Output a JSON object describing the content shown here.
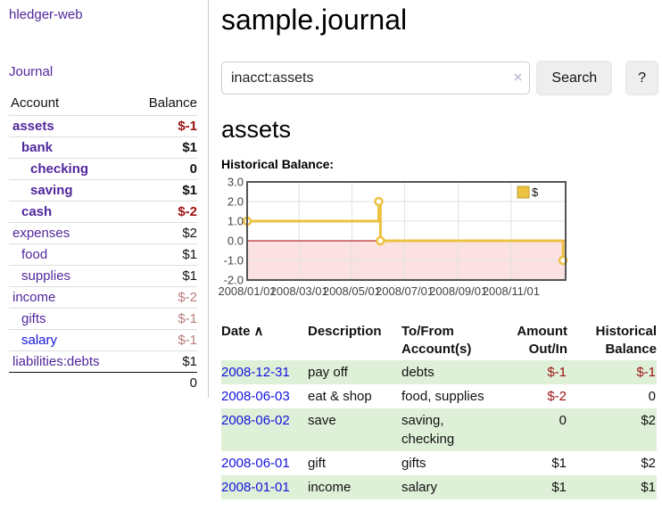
{
  "colors": {
    "link_purple": "#50279c",
    "link_blue": "#1414dd",
    "negative_strong": "#9c1111",
    "negative_muted": "#b97c7c",
    "row_stripe_green": "#dff0d8",
    "chart_line_gold": "#edc240",
    "chart_below_zero_pink": "#fbe1e1",
    "chart_zero_line_red": "#aa0000"
  },
  "sidebar": {
    "app_title": "hledger-web",
    "journal_link": "Journal",
    "accounts_table": {
      "headers": {
        "account": "Account",
        "balance": "Balance"
      },
      "rows": [
        {
          "name": "assets",
          "depth": 0,
          "bold": true,
          "name_style": "purple",
          "balance": "$-1",
          "balance_style": "neg-strong"
        },
        {
          "name": "bank",
          "depth": 1,
          "bold": true,
          "name_style": "purple",
          "balance": "$1",
          "balance_style": "normal"
        },
        {
          "name": "checking",
          "depth": 2,
          "bold": true,
          "name_style": "purple",
          "balance": "0",
          "balance_style": "normal"
        },
        {
          "name": "saving",
          "depth": 2,
          "bold": true,
          "name_style": "purple",
          "balance": "$1",
          "balance_style": "normal"
        },
        {
          "name": "cash",
          "depth": 1,
          "bold": true,
          "name_style": "purple",
          "balance": "$-2",
          "balance_style": "neg-strong"
        },
        {
          "name": "expenses",
          "depth": 0,
          "bold": false,
          "name_style": "purple",
          "balance": "$2",
          "balance_style": "normal"
        },
        {
          "name": "food",
          "depth": 1,
          "bold": false,
          "name_style": "purple",
          "balance": "$1",
          "balance_style": "normal"
        },
        {
          "name": "supplies",
          "depth": 1,
          "bold": false,
          "name_style": "purple",
          "balance": "$1",
          "balance_style": "normal"
        },
        {
          "name": "income",
          "depth": 0,
          "bold": false,
          "name_style": "purple",
          "balance": "$-2",
          "balance_style": "neg-muted"
        },
        {
          "name": "gifts",
          "depth": 1,
          "bold": false,
          "name_style": "purple",
          "balance": "$-1",
          "balance_style": "neg-muted"
        },
        {
          "name": "salary",
          "depth": 1,
          "bold": false,
          "name_style": "blue",
          "balance": "$-1",
          "balance_style": "neg-muted"
        },
        {
          "name": "liabilities:debts",
          "depth": 0,
          "bold": false,
          "name_style": "purple",
          "balance": "$1",
          "balance_style": "normal"
        }
      ],
      "total": "0"
    }
  },
  "main": {
    "title": "sample.journal",
    "search": {
      "value": "inacct:assets",
      "clear_icon": "×",
      "search_button": "Search",
      "help_button": "?"
    },
    "account_heading": "assets",
    "chart_label": "Historical Balance:",
    "table": {
      "headers": {
        "date": "Date",
        "sort_icon": "∧",
        "description": "Description",
        "tofrom_line1": "To/From",
        "tofrom_line2": "Account(s)",
        "amount_line1": "Amount",
        "amount_line2": "Out/In",
        "balance_line1": "Historical",
        "balance_line2": "Balance"
      },
      "rows": [
        {
          "date": "2008-12-31",
          "description": "pay off",
          "accounts": "debts",
          "amount": "$-1",
          "amount_style": "neg-strong",
          "balance": "$-1",
          "balance_style": "neg-strong",
          "striped": true
        },
        {
          "date": "2008-06-03",
          "description": "eat & shop",
          "accounts": "food, supplies",
          "amount": "$-2",
          "amount_style": "neg-strong",
          "balance": "0",
          "balance_style": "normal",
          "striped": false
        },
        {
          "date": "2008-06-02",
          "description": "save",
          "accounts": "saving, checking",
          "amount": "0",
          "amount_style": "normal",
          "balance": "$2",
          "balance_style": "normal",
          "striped": true
        },
        {
          "date": "2008-06-01",
          "description": "gift",
          "accounts": "gifts",
          "amount": "$1",
          "amount_style": "normal",
          "balance": "$2",
          "balance_style": "normal",
          "striped": false
        },
        {
          "date": "2008-01-01",
          "description": "income",
          "accounts": "salary",
          "amount": "$1",
          "amount_style": "normal",
          "balance": "$1",
          "balance_style": "normal",
          "striped": true
        }
      ]
    }
  },
  "chart_data": {
    "type": "line",
    "title": "Historical Balance of assets",
    "series": [
      {
        "name": "$",
        "color": "#edc240",
        "steps": true,
        "points": [
          [
            "2008-01-01",
            1
          ],
          [
            "2008-06-01",
            2
          ],
          [
            "2008-06-03",
            0
          ],
          [
            "2008-12-31",
            -1
          ]
        ]
      }
    ],
    "x_ticks": [
      "2008/01/01",
      "2008/03/01",
      "2008/05/01",
      "2008/07/01",
      "2008/09/01",
      "2008/11/01"
    ],
    "y_ticks": [
      "3.0",
      "2.0",
      "1.0",
      "0.0",
      "-1.0",
      "-2.0"
    ],
    "ylim": [
      -2,
      3
    ],
    "xlim": [
      "2008-01-01",
      "2009-01-03"
    ],
    "grid": true,
    "legend_position": "top-right",
    "markings": {
      "below_zero_fill": "#fbe1e1",
      "zero_line": "#aa0000"
    }
  }
}
